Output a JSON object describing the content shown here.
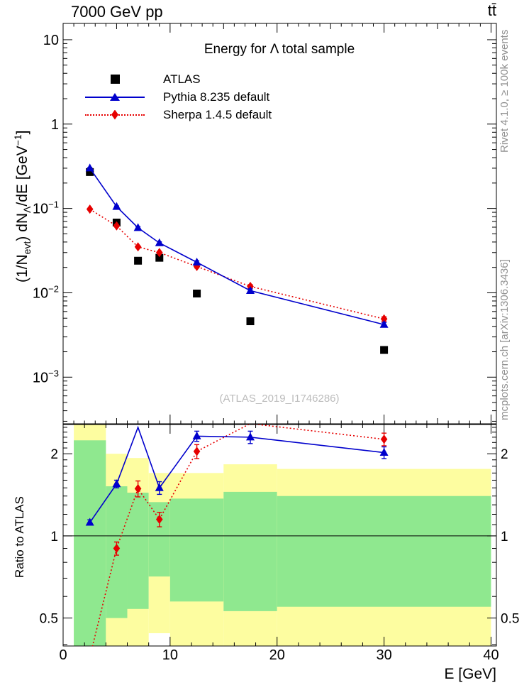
{
  "chart_data": {
    "type": "line",
    "title": "Energy for Λ total sample",
    "top_left_label": "7000 GeV pp",
    "top_right_label": "tt̄",
    "xlabel": "E [GeV]",
    "ylabel_parts": {
      "p1": "(1/N",
      "s1": "evt",
      "p2": ") dN",
      "s2": "Λ",
      "p3": "/dE [GeV",
      "sup": "−1",
      "p4": "]"
    },
    "ratio_ylabel": "Ratio to ATLAS",
    "watermark": "(ATLAS_2019_I1746286)",
    "side_top": "Rivet 4.1.0, ≥ 100k events",
    "side_bottom": "mcplots.cern.ch [arXiv:1306.3436]",
    "x": [
      2.5,
      5,
      7,
      9,
      12.5,
      17.5,
      30
    ],
    "series": [
      {
        "label": "ATLAS",
        "color": "#000000",
        "marker": "square",
        "line": "none",
        "values": [
          0.27,
          0.068,
          0.024,
          0.026,
          0.0098,
          0.0046,
          0.0021
        ],
        "err_rel": [
          0,
          0,
          0,
          0,
          0,
          0,
          0
        ],
        "ratio": null,
        "ratio_err": null
      },
      {
        "label": "Sherpa 1.4.5 default",
        "color": "#e60000",
        "marker": "diamond",
        "line": "dotted",
        "values": [
          0.098,
          0.062,
          0.035,
          0.03,
          0.0205,
          0.0119,
          0.0049
        ],
        "err_rel": [
          0.02,
          0.02,
          0.03,
          0.03,
          0.04,
          0.05,
          0.06
        ],
        "ratio": [
          0.36,
          0.9,
          1.49,
          1.15,
          2.04,
          2.58,
          2.26
        ],
        "ratio_err": [
          0.04,
          0.05,
          0.1,
          0.07,
          0.12,
          0.12,
          0.12
        ]
      },
      {
        "label": "Pythia 8.235 default",
        "color": "#0000cc",
        "marker": "triangle",
        "line": "solid",
        "values": [
          0.3,
          0.105,
          0.059,
          0.039,
          0.023,
          0.0106,
          0.0042
        ],
        "err_rel": [
          0.02,
          0.02,
          0.03,
          0.03,
          0.04,
          0.05,
          0.06
        ],
        "ratio": [
          1.12,
          1.55,
          2.5,
          1.5,
          2.32,
          2.3,
          2.02
        ],
        "ratio_err": [
          0.025,
          0.05,
          0.12,
          0.08,
          0.1,
          0.12,
          0.1
        ]
      }
    ],
    "legend_order": [
      0,
      2,
      1
    ],
    "bands": {
      "edges": [
        1,
        4,
        6,
        8,
        10,
        15,
        20,
        40
      ],
      "yellow_top": [
        2.6,
        2.0,
        1.93,
        1.7,
        1.7,
        1.83,
        1.76
      ],
      "green_top": [
        2.24,
        1.52,
        1.44,
        1.33,
        1.37,
        1.45,
        1.4
      ],
      "green_bot": [
        0.38,
        0.5,
        0.54,
        0.71,
        0.575,
        0.53,
        0.55
      ],
      "yellow_bot": [
        0.38,
        0.38,
        0.38,
        0.44,
        0.38,
        0.38,
        0.38
      ],
      "yellow": "#fdfda0",
      "green": "#8fe88f"
    },
    "axes": {
      "xmin": 0,
      "xmax": 40.5,
      "ymin": 0.00028,
      "ymax": 15.6,
      "rmin": 0.395,
      "rmax": 2.56,
      "xticks": [
        0,
        10,
        20,
        30,
        40
      ],
      "yticks": [
        {
          "v": 10,
          "main": "10",
          "sup": ""
        },
        {
          "v": 1,
          "main": "1",
          "sup": ""
        },
        {
          "v": 0.1,
          "main": "10",
          "sup": "−1"
        },
        {
          "v": 0.01,
          "main": "10",
          "sup": "−2"
        },
        {
          "v": 0.001,
          "main": "10",
          "sup": "−3"
        }
      ],
      "rticks": [
        {
          "v": 2,
          "label": "2"
        },
        {
          "v": 1,
          "label": "1"
        },
        {
          "v": 0.5,
          "label": "0.5"
        }
      ]
    }
  }
}
